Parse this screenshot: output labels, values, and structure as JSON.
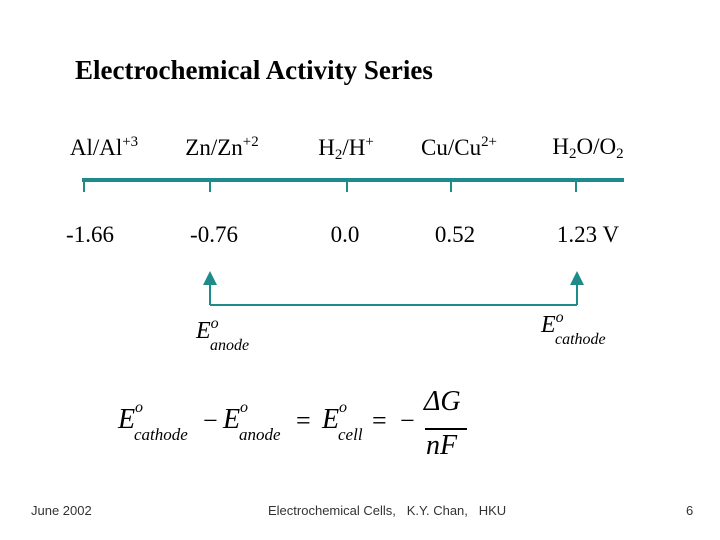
{
  "title": "Electrochemical Activity Series",
  "couples": [
    {
      "base": "Al/Al",
      "sup": "+3",
      "potential": "-1.66"
    },
    {
      "base": "Zn/Zn",
      "sup": "+2",
      "potential": "-0.76"
    },
    {
      "base": "H",
      "sub": "2",
      "tail": "/H",
      "sup": "+",
      "potential": "0.0"
    },
    {
      "base": "Cu/Cu",
      "sup": "2+",
      "potential": "0.52"
    },
    {
      "base": "H",
      "sub": "2",
      "tail": "O/O",
      "sub2": "2",
      "potential": "1.23 V"
    }
  ],
  "arrow": {
    "left_label": {
      "E": "E",
      "sup": "o",
      "sub": "anode"
    },
    "right_label": {
      "E": "E",
      "sup": "o",
      "sub": "cathode"
    }
  },
  "equation": {
    "E": "E",
    "o": "o",
    "cathode": "cathode",
    "anode": "anode",
    "cell": "cell",
    "minus": "−",
    "equals": "=",
    "numerator": "ΔG",
    "denominator": "nF"
  },
  "footer": {
    "date": "June 2002",
    "center": "Electrochemical Cells,   K.Y. Chan,   HKU",
    "page": "6"
  },
  "colors": {
    "axis": "#1f8a8a",
    "text": "#000000"
  }
}
